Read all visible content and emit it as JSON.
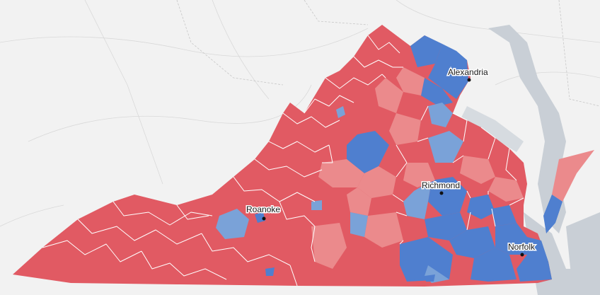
{
  "colors": {
    "background": "#efefef",
    "land": "#f4f4f4",
    "water": "#c9cfd6",
    "strong_red": "#e15a63",
    "light_red": "#eb8a8c",
    "strong_blue": "#4f7fcf",
    "light_blue": "#7aa2d8",
    "county_border": "#ffffff",
    "city_dot": "#111111"
  },
  "cities": [
    {
      "name": "Alexandria"
    },
    {
      "name": "Richmond"
    },
    {
      "name": "Roanoke"
    },
    {
      "name": "Norfolk"
    }
  ]
}
